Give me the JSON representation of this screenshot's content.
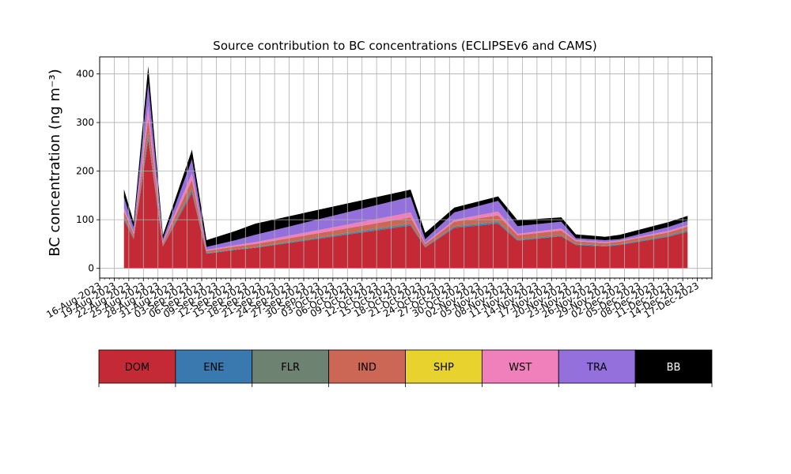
{
  "chart_data": {
    "type": "area",
    "title": "Source contribution to BC concentrations (ECLIPSEv6 and CAMS)",
    "xlabel": "",
    "ylabel": "BC concentration (ng m⁻³)",
    "grid": true,
    "stacked": true,
    "xlim": [
      "2023-08-16",
      "2023-12-20"
    ],
    "ylim": [
      -20,
      435
    ],
    "y_ticks": [
      0,
      100,
      200,
      300,
      400
    ],
    "x_tick_labels": [
      "16-Aug-2023",
      "19-Aug-2023",
      "22-Aug-2023",
      "25-Aug-2023",
      "28-Aug-2023",
      "31-Aug-2023",
      "03-Sep-2023",
      "06-Sep-2023",
      "09-Sep-2023",
      "12-Sep-2023",
      "15-Sep-2023",
      "18-Sep-2023",
      "21-Sep-2023",
      "24-Sep-2023",
      "27-Sep-2023",
      "30-Sep-2023",
      "03-Oct-2023",
      "06-Oct-2023",
      "09-Oct-2023",
      "12-Oct-2023",
      "15-Oct-2023",
      "18-Oct-2023",
      "21-Oct-2023",
      "24-Oct-2023",
      "27-Oct-2023",
      "30-Oct-2023",
      "02-Nov-2023",
      "05-Nov-2023",
      "08-Nov-2023",
      "11-Nov-2023",
      "14-Nov-2023",
      "17-Nov-2023",
      "20-Nov-2023",
      "23-Nov-2023",
      "26-Nov-2023",
      "29-Nov-2023",
      "02-Dec-2023",
      "05-Dec-2023",
      "08-Dec-2023",
      "11-Dec-2023",
      "14-Dec-2023",
      "17-Dec-2023"
    ],
    "x": [
      "2023-08-21",
      "2023-08-23",
      "2023-08-26",
      "2023-08-29",
      "2023-09-04",
      "2023-09-07",
      "2023-09-13",
      "2023-09-17",
      "2023-10-19",
      "2023-10-22",
      "2023-10-28",
      "2023-11-06",
      "2023-11-10",
      "2023-11-19",
      "2023-11-22",
      "2023-11-28",
      "2023-12-01",
      "2023-12-11",
      "2023-12-15"
    ],
    "series": [
      {
        "name": "DOM",
        "color": "#c42a36",
        "values": [
          100,
          60,
          265,
          45,
          155,
          30,
          38,
          42,
          88,
          43,
          83,
          92,
          57,
          66,
          48,
          45,
          48,
          65,
          75
        ]
      },
      {
        "name": "ENE",
        "color": "#3a78b0",
        "values": [
          3,
          2,
          6,
          1,
          4,
          1,
          1,
          1,
          2,
          1,
          2,
          2,
          1,
          1,
          1,
          1,
          1,
          1,
          2
        ]
      },
      {
        "name": "FLR",
        "color": "#6e8272",
        "values": [
          3,
          2,
          8,
          1,
          5,
          1,
          1,
          1,
          3,
          1,
          2,
          3,
          2,
          2,
          1,
          1,
          1,
          2,
          2
        ]
      },
      {
        "name": "IND",
        "color": "#cc6655",
        "values": [
          12,
          7,
          30,
          5,
          18,
          4,
          5,
          6,
          12,
          5,
          9,
          12,
          8,
          9,
          6,
          5,
          5,
          6,
          7
        ]
      },
      {
        "name": "SHP",
        "color": "#e8d22e",
        "values": [
          0,
          0,
          0,
          0,
          0,
          0,
          0,
          0,
          0,
          0,
          0,
          0,
          0,
          0,
          0,
          0,
          0,
          0,
          0
        ]
      },
      {
        "name": "WST",
        "color": "#f080bc",
        "values": [
          6,
          3,
          25,
          2,
          14,
          2,
          3,
          4,
          10,
          2,
          4,
          8,
          3,
          4,
          2,
          2,
          2,
          3,
          3
        ]
      },
      {
        "name": "TRA",
        "color": "#9370db",
        "values": [
          22,
          10,
          47,
          6,
          28,
          6,
          10,
          15,
          32,
          8,
          15,
          22,
          16,
          14,
          4,
          4,
          3,
          8,
          9
        ]
      },
      {
        "name": "BB",
        "color": "#000000",
        "values": [
          17,
          11,
          35,
          8,
          20,
          14,
          19,
          23,
          15,
          13,
          10,
          9,
          12,
          9,
          8,
          7,
          9,
          10,
          10
        ]
      }
    ]
  }
}
